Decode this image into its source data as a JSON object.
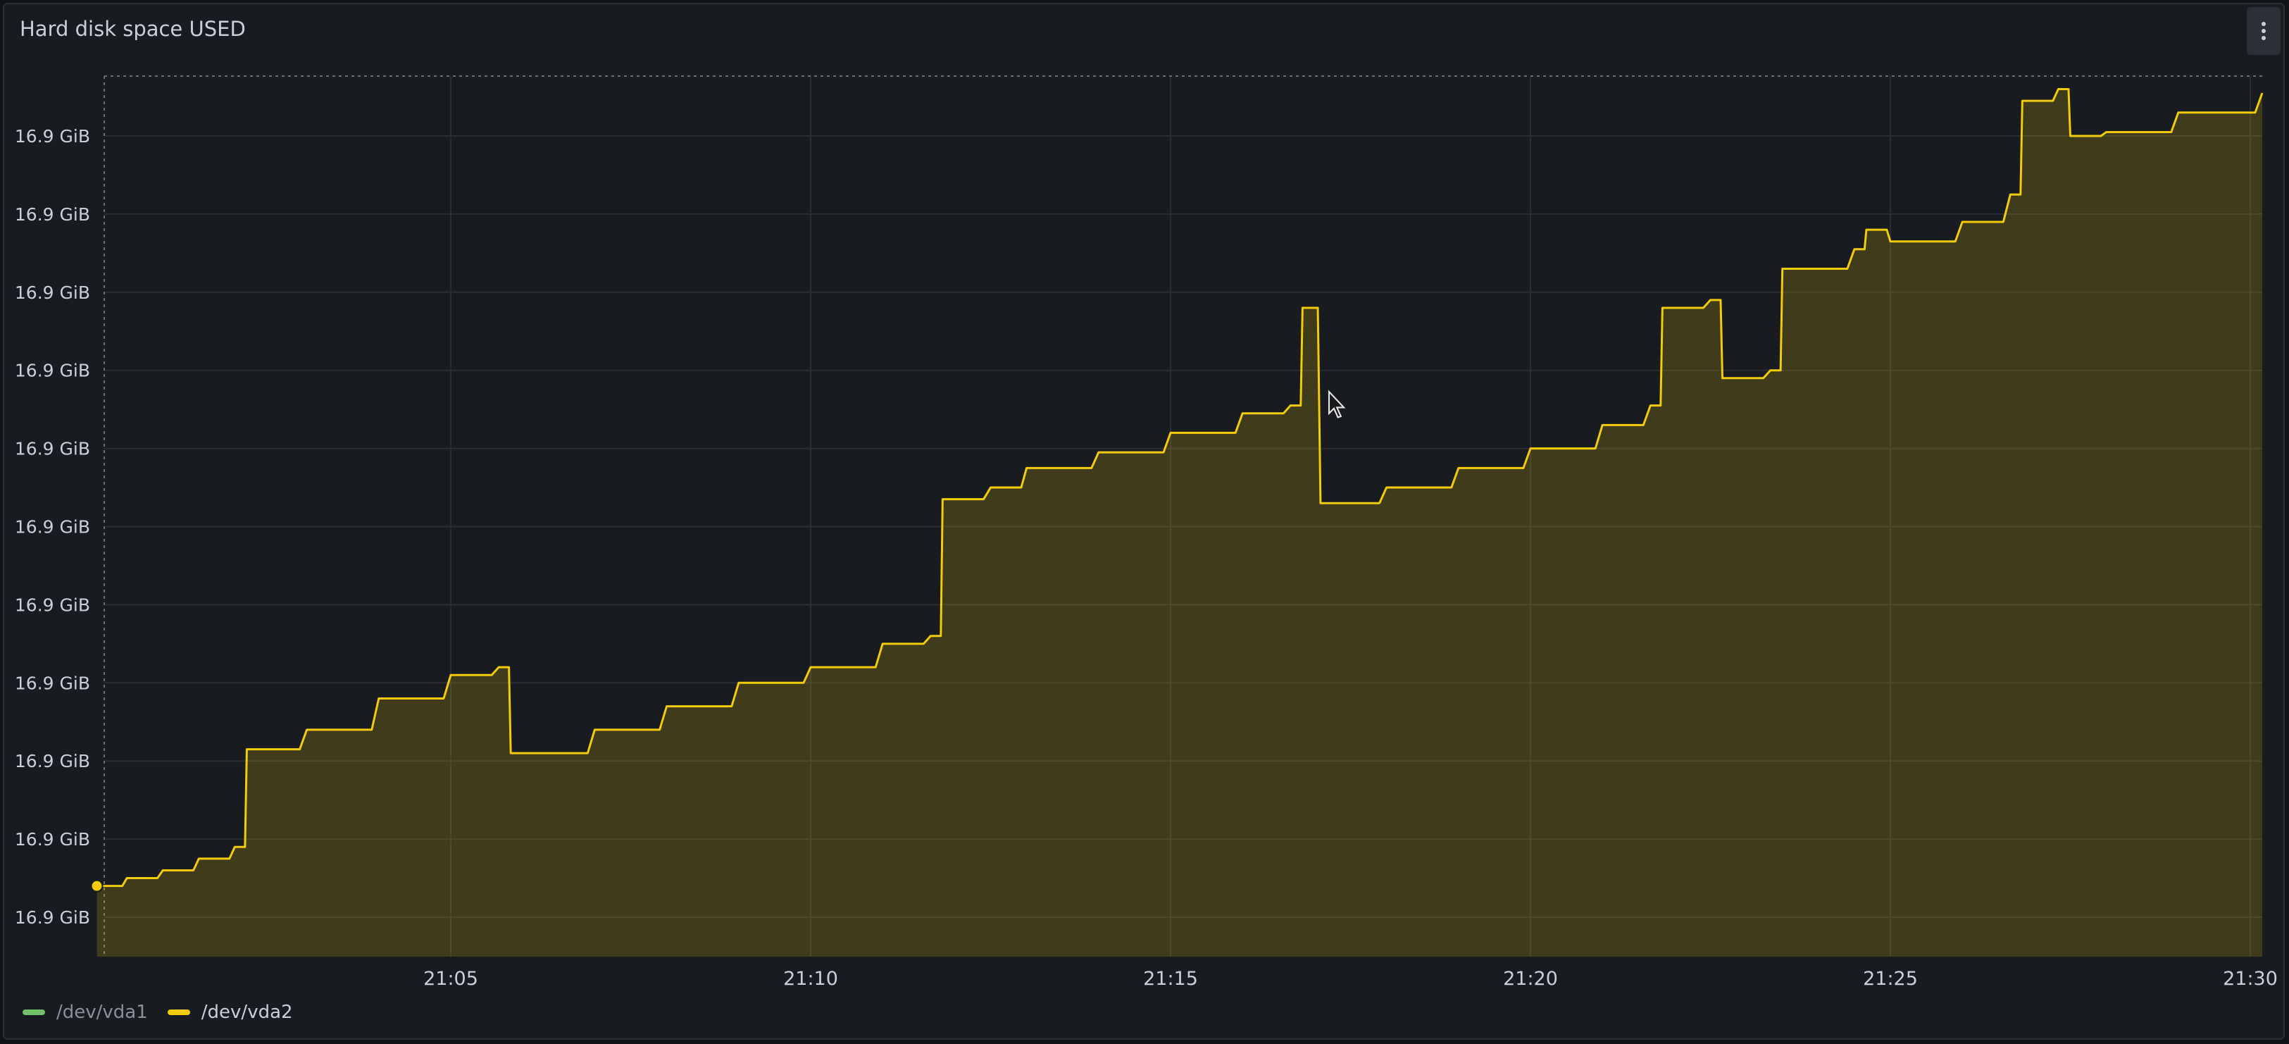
{
  "panel": {
    "title": "Hard disk space USED"
  },
  "legend": [
    {
      "name": "/dev/vda1",
      "color": "#73bf69",
      "visible": false
    },
    {
      "name": "/dev/vda2",
      "color": "#f2cc0c",
      "visible": true
    }
  ],
  "chart_data": {
    "type": "area",
    "title": "Hard disk space USED",
    "xlabel": "",
    "ylabel": "",
    "x_ticks": [
      "21:05",
      "21:10",
      "21:15",
      "21:20",
      "21:25",
      "21:30"
    ],
    "y_ticks": [
      "16.9 GiB",
      "16.9 GiB",
      "16.9 GiB",
      "16.9 GiB",
      "16.9 GiB",
      "16.9 GiB",
      "16.9 GiB",
      "16.9 GiB",
      "16.9 GiB",
      "16.9 GiB",
      "16.9 GiB"
    ],
    "x_range": [
      "21:00:10",
      "21:30:10"
    ],
    "grid": true,
    "legend_position": "bottom-left",
    "series": [
      {
        "name": "/dev/vda2",
        "color": "#f2cc0c",
        "unit": "relative level (0 = bottom gridline, 10 = top gridline)",
        "points": [
          [
            "21:00:05",
            0.4
          ],
          [
            "21:00:30",
            0.5
          ],
          [
            "21:01:00",
            0.6
          ],
          [
            "21:01:30",
            0.75
          ],
          [
            "21:02:00",
            0.9
          ],
          [
            "21:02:10",
            2.15
          ],
          [
            "21:03:00",
            2.4
          ],
          [
            "21:04:00",
            2.8
          ],
          [
            "21:05:00",
            3.1
          ],
          [
            "21:05:40",
            3.2
          ],
          [
            "21:05:50",
            2.1
          ],
          [
            "21:07:00",
            2.4
          ],
          [
            "21:08:00",
            2.7
          ],
          [
            "21:09:00",
            3.0
          ],
          [
            "21:10:00",
            3.2
          ],
          [
            "21:11:00",
            3.5
          ],
          [
            "21:11:40",
            3.6
          ],
          [
            "21:11:50",
            5.35
          ],
          [
            "21:12:30",
            5.5
          ],
          [
            "21:13:00",
            5.75
          ],
          [
            "21:14:00",
            5.95
          ],
          [
            "21:15:00",
            6.2
          ],
          [
            "21:16:00",
            6.45
          ],
          [
            "21:16:40",
            6.55
          ],
          [
            "21:16:50",
            7.8
          ],
          [
            "21:17:05",
            5.3
          ],
          [
            "21:18:00",
            5.5
          ],
          [
            "21:19:00",
            5.75
          ],
          [
            "21:20:00",
            6.0
          ],
          [
            "21:21:00",
            6.3
          ],
          [
            "21:21:40",
            6.55
          ],
          [
            "21:21:50",
            7.8
          ],
          [
            "21:22:30",
            7.9
          ],
          [
            "21:22:40",
            6.9
          ],
          [
            "21:23:20",
            7.0
          ],
          [
            "21:23:30",
            8.3
          ],
          [
            "21:24:30",
            8.55
          ],
          [
            "21:24:40",
            8.8
          ],
          [
            "21:25:00",
            8.65
          ],
          [
            "21:26:00",
            8.9
          ],
          [
            "21:26:40",
            9.25
          ],
          [
            "21:26:50",
            10.45
          ],
          [
            "21:27:20",
            10.6
          ],
          [
            "21:27:30",
            10.0
          ],
          [
            "21:28:00",
            10.05
          ],
          [
            "21:29:00",
            10.3
          ],
          [
            "21:30:10",
            10.55
          ]
        ]
      }
    ],
    "annotations": [
      {
        "type": "point-marker",
        "series": "/dev/vda2",
        "x": "21:00:05",
        "y": 0.4
      }
    ]
  }
}
